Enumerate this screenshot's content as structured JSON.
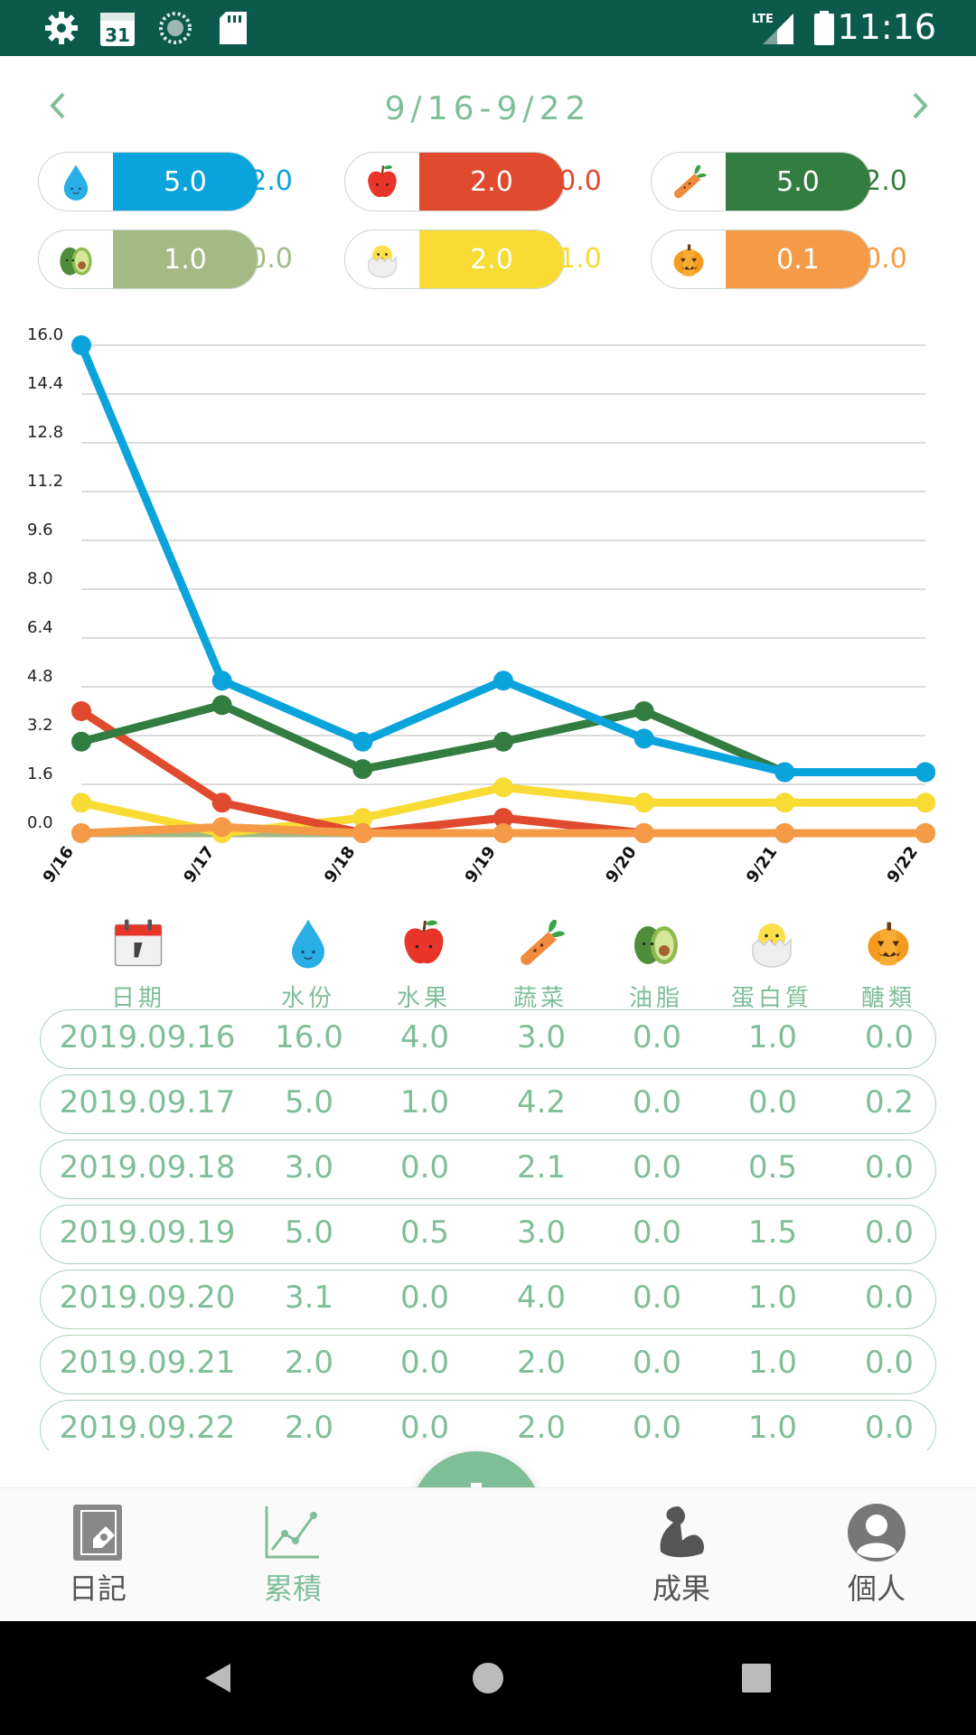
{
  "status_bar": {
    "time": "11:16",
    "calendar_day": "31",
    "network": "LTE"
  },
  "header": {
    "date_range": "9/16-9/22"
  },
  "summary": [
    {
      "name": "water",
      "icon": "water-drop-icon",
      "value": "5.0",
      "extra": "2.0",
      "color": "#0aa3dc"
    },
    {
      "name": "fruit",
      "icon": "apple-icon",
      "value": "2.0",
      "extra": "0.0",
      "color": "#e04a2e"
    },
    {
      "name": "vegetable",
      "icon": "carrot-icon",
      "value": "5.0",
      "extra": "2.0",
      "color": "#347d40"
    },
    {
      "name": "fat",
      "icon": "avocado-icon",
      "value": "1.0",
      "extra": "0.0",
      "color": "#a3ba85"
    },
    {
      "name": "protein",
      "icon": "chick-icon",
      "value": "2.0",
      "extra": "1.0",
      "color": "#f8db33"
    },
    {
      "name": "sugar",
      "icon": "pumpkin-icon",
      "value": "0.1",
      "extra": "0.0",
      "color": "#f59b47"
    }
  ],
  "chart_data": {
    "type": "line",
    "categories": [
      "9/16",
      "9/17",
      "9/18",
      "9/19",
      "9/20",
      "9/21",
      "9/22"
    ],
    "y_ticks": [
      "16.0",
      "14.4",
      "12.8",
      "11.2",
      "9.6",
      "8.0",
      "6.4",
      "4.8",
      "3.2",
      "1.6",
      "0.0"
    ],
    "ylim": [
      0,
      16
    ],
    "grid": true,
    "series": [
      {
        "key": "fat",
        "color": "#a3ba85",
        "values": [
          0.0,
          0.0,
          0.0,
          0.0,
          0.0,
          0.0,
          0.0
        ]
      },
      {
        "key": "protein",
        "color": "#f8db33",
        "values": [
          1.0,
          0.0,
          0.5,
          1.5,
          1.0,
          1.0,
          1.0
        ]
      },
      {
        "key": "fruit",
        "color": "#e04a2e",
        "values": [
          4.0,
          1.0,
          0.0,
          0.5,
          0.0,
          0.0,
          0.0
        ]
      },
      {
        "key": "vegetable",
        "color": "#347d40",
        "values": [
          3.0,
          4.2,
          2.1,
          3.0,
          4.0,
          2.0,
          2.0
        ]
      },
      {
        "key": "water",
        "color": "#0aa3dc",
        "values": [
          16.0,
          5.0,
          3.0,
          5.0,
          3.1,
          2.0,
          2.0
        ]
      },
      {
        "key": "sugar",
        "color": "#f59b47",
        "values": [
          0.0,
          0.2,
          0.0,
          0.0,
          0.0,
          0.0,
          0.0
        ]
      }
    ]
  },
  "table": {
    "headers": [
      {
        "label": "日期",
        "icon": "calendar-icon"
      },
      {
        "label": "水份",
        "icon": "water-drop-icon"
      },
      {
        "label": "水果",
        "icon": "apple-icon"
      },
      {
        "label": "蔬菜",
        "icon": "carrot-icon"
      },
      {
        "label": "油脂",
        "icon": "avocado-icon"
      },
      {
        "label": "蛋白質",
        "icon": "chick-icon"
      },
      {
        "label": "醣類",
        "icon": "pumpkin-icon"
      }
    ],
    "rows": [
      [
        "2019.09.16",
        "16.0",
        "4.0",
        "3.0",
        "0.0",
        "1.0",
        "0.0"
      ],
      [
        "2019.09.17",
        "5.0",
        "1.0",
        "4.2",
        "0.0",
        "0.0",
        "0.2"
      ],
      [
        "2019.09.18",
        "3.0",
        "0.0",
        "2.1",
        "0.0",
        "0.5",
        "0.0"
      ],
      [
        "2019.09.19",
        "5.0",
        "0.5",
        "3.0",
        "0.0",
        "1.5",
        "0.0"
      ],
      [
        "2019.09.20",
        "3.1",
        "0.0",
        "4.0",
        "0.0",
        "1.0",
        "0.0"
      ],
      [
        "2019.09.21",
        "2.0",
        "0.0",
        "2.0",
        "0.0",
        "1.0",
        "0.0"
      ],
      [
        "2019.09.22",
        "2.0",
        "0.0",
        "2.0",
        "0.0",
        "1.0",
        "0.0"
      ]
    ]
  },
  "bottom_nav": {
    "diary": "日記",
    "cumulative": "累積",
    "results": "成果",
    "profile": "個人",
    "accent": "#7fbf98"
  }
}
